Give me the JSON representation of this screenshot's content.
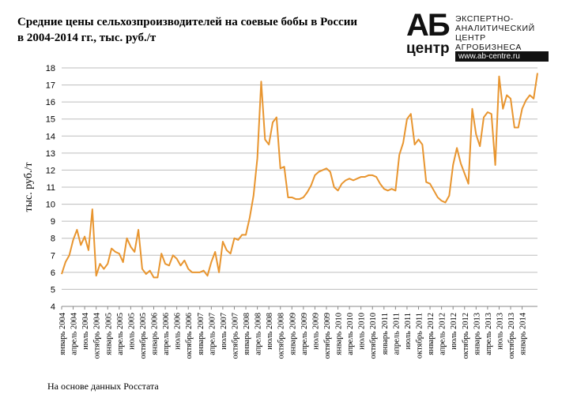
{
  "title_line1": "Средние цены сельхозпроизводителей  на соевые бобы в России",
  "title_line2": "в 2004-2014 гг., тыс. руб./т",
  "logo": {
    "mark_top": "АБ",
    "mark_bottom": "центр",
    "line1": "ЭКСПЕРТНО-",
    "line2": "АНАЛИТИЧЕСКИЙ",
    "line3": "ЦЕНТР",
    "line4": "АГРОБИЗНЕСА",
    "url": "www.ab-centre.ru"
  },
  "source": "На основе данных Росстата",
  "chart_data": {
    "type": "line",
    "title": "Средние цены сельхозпроизводителей  на соевые бобы в России в 2004-2014 гг., тыс. руб./т",
    "ylabel": "тыс. руб./т",
    "xlabel": "",
    "ylim": [
      4,
      18
    ],
    "yticks": [
      4,
      5,
      6,
      7,
      8,
      9,
      10,
      11,
      12,
      13,
      14,
      15,
      16,
      17,
      18
    ],
    "grid": true,
    "legend": "none",
    "line_color": "#E8952F",
    "x_ticks": [
      "январь 2004",
      "апрель 2004",
      "июль 2004",
      "октябрь 2004",
      "январь 2005",
      "апрель 2005",
      "июль 2005",
      "октябрь 2005",
      "январь 2006",
      "апрель 2006",
      "июль 2006",
      "октябрь 2006",
      "январь 2007",
      "апрель 2007",
      "июль 2007",
      "октябрь 2007",
      "январь 2008",
      "апрель 2008",
      "июль 2008",
      "октябрь 2008",
      "январь 2009",
      "апрель 2009",
      "июль 2009",
      "октябрь 2009",
      "январь 2010",
      "апрель 2010",
      "июль 2010",
      "октябрь 2010",
      "январь 2011",
      "апрель 2011",
      "июль 2011",
      "октябрь 2011",
      "январь 2012",
      "апрель 2012",
      "июль 2012",
      "октябрь 2012",
      "январь 2013",
      "апрель 2013",
      "июль 2013",
      "октябрь 2013",
      "январь 2014"
    ],
    "series": [
      {
        "values": [
          5.9,
          6.6,
          7.0,
          7.9,
          8.5,
          7.6,
          8.1,
          7.3,
          9.7,
          5.8,
          6.5,
          6.2,
          6.5,
          7.4,
          7.2,
          7.1,
          6.6,
          8.0,
          7.5,
          7.2,
          8.5,
          6.2,
          5.9,
          6.1,
          5.7,
          5.7,
          7.1,
          6.5,
          6.4,
          7.0,
          6.8,
          6.4,
          6.7,
          6.2,
          6.0,
          6.0,
          6.0,
          6.1,
          5.8,
          6.6,
          7.2,
          6.0,
          7.8,
          7.3,
          7.1,
          8.0,
          7.9,
          8.2,
          8.2,
          9.2,
          10.5,
          12.7,
          17.2,
          13.8,
          13.5,
          14.8,
          15.1,
          12.1,
          12.2,
          10.4,
          10.4,
          10.3,
          10.3,
          10.4,
          10.7,
          11.1,
          11.7,
          11.9,
          12.0,
          12.1,
          11.9,
          11.0,
          10.8,
          11.2,
          11.4,
          11.5,
          11.4,
          11.5,
          11.6,
          11.6,
          11.7,
          11.7,
          11.6,
          11.2,
          10.9,
          10.8,
          10.9,
          10.8,
          12.9,
          13.6,
          15.0,
          15.3,
          13.5,
          13.8,
          13.5,
          11.3,
          11.2,
          10.8,
          10.4,
          10.2,
          10.1,
          10.5,
          12.3,
          13.3,
          12.4,
          11.8,
          11.2,
          15.6,
          14.1,
          13.4,
          15.1,
          15.4,
          15.3,
          12.3,
          17.5,
          15.6,
          16.4,
          16.2,
          14.5,
          14.5,
          15.6,
          16.1,
          16.4,
          16.2,
          17.7
        ]
      }
    ]
  }
}
